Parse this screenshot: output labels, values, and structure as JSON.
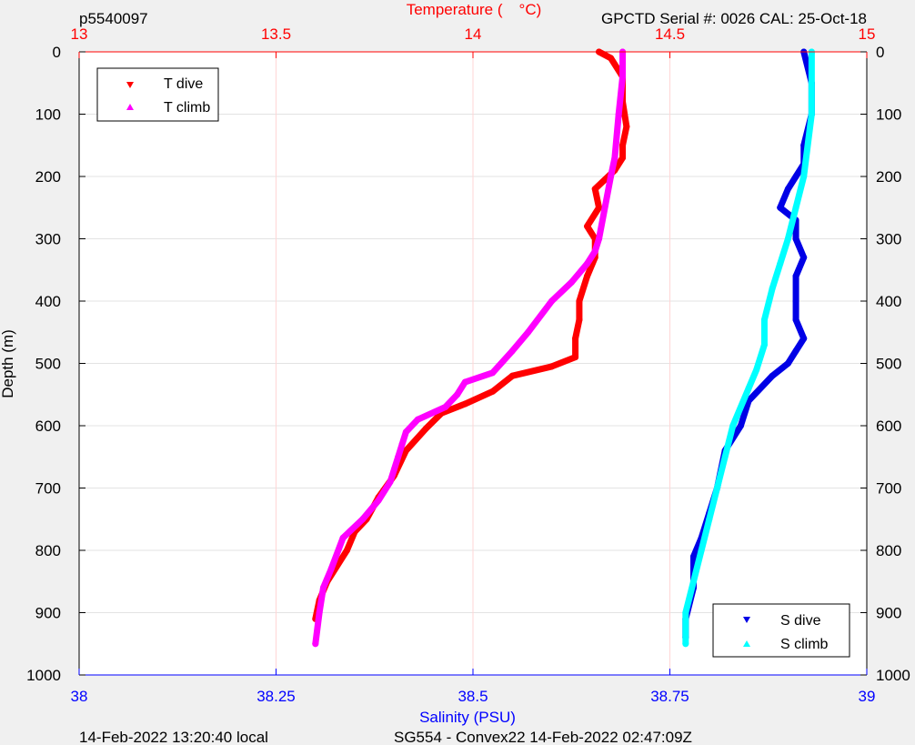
{
  "header": {
    "left_id": "p5540097",
    "right_info": "GPCTD Serial #: 0026 CAL: 25-Oct-18"
  },
  "footer": {
    "left": "14-Feb-2022 13:20:40 local",
    "center": "SG554 - Convex22 14-Feb-2022 02:47:09Z"
  },
  "colors": {
    "t_dive": "#ff0000",
    "t_climb": "#ff00ff",
    "s_dive": "#0000e6",
    "s_climb": "#00ffff",
    "temp_axis": "#ff0000",
    "sal_axis": "#0000ff",
    "depth_axis": "#000000"
  },
  "chart_data": {
    "type": "scatter",
    "y_axis": {
      "label": "Depth (m)",
      "range": [
        0,
        1000
      ],
      "reversed": true,
      "ticks": [
        0,
        100,
        200,
        300,
        400,
        500,
        600,
        700,
        800,
        900,
        1000
      ],
      "tick_labels": [
        "0",
        "100",
        "200",
        "300",
        "400",
        "500",
        "600",
        "700",
        "800",
        "900",
        "1000"
      ],
      "grid": true,
      "mirrored_right": true
    },
    "temperature_axis": {
      "position": "top",
      "label_left": "Temperature (",
      "label_right": "°C)",
      "range": [
        13,
        15
      ],
      "ticks": [
        13,
        13.5,
        14,
        14.5,
        15
      ],
      "tick_labels": [
        "13",
        "13.5",
        "14",
        "14.5",
        "15"
      ],
      "grid": true
    },
    "salinity_axis": {
      "position": "bottom",
      "label": "Salinity (PSU)",
      "range": [
        38,
        39
      ],
      "ticks": [
        38,
        38.25,
        38.5,
        38.75,
        39
      ],
      "tick_labels": [
        "38",
        "38.25",
        "38.5",
        "38.75",
        "39"
      ]
    },
    "legends": [
      {
        "placement": "top-left",
        "entries": [
          {
            "label": "T dive",
            "marker": "triangle-down",
            "color": "#ff0000"
          },
          {
            "label": "T climb",
            "marker": "triangle-up",
            "color": "#ff00ff"
          }
        ]
      },
      {
        "placement": "bottom-right",
        "entries": [
          {
            "label": "S dive",
            "marker": "triangle-down",
            "color": "#0000e6"
          },
          {
            "label": "S climb",
            "marker": "triangle-up",
            "color": "#00ffff"
          }
        ]
      }
    ],
    "series": [
      {
        "name": "T dive",
        "axis": "temperature",
        "color": "#ff0000",
        "x": [
          14.32,
          14.35,
          14.38,
          14.38,
          14.39,
          14.38,
          14.38,
          14.36,
          14.31,
          14.32,
          14.29,
          14.31,
          14.31,
          14.29,
          14.27,
          14.27,
          14.26,
          14.26,
          14.2,
          14.1,
          14.05,
          13.98,
          13.92,
          13.88,
          13.83,
          13.8,
          13.76,
          13.73,
          13.7,
          13.68,
          13.63,
          13.61,
          13.6
        ],
        "y": [
          0,
          10,
          40,
          80,
          120,
          150,
          170,
          190,
          220,
          250,
          280,
          300,
          330,
          360,
          400,
          430,
          460,
          490,
          505,
          520,
          545,
          565,
          580,
          605,
          640,
          680,
          715,
          750,
          770,
          800,
          850,
          880,
          910
        ]
      },
      {
        "name": "T climb",
        "axis": "temperature",
        "color": "#ff00ff",
        "x": [
          13.6,
          13.61,
          13.62,
          13.64,
          13.67,
          13.72,
          13.76,
          13.79,
          13.8,
          13.81,
          13.82,
          13.83,
          13.86,
          13.93,
          13.96,
          13.98,
          14.05,
          14.1,
          14.14,
          14.2,
          14.25,
          14.29,
          14.31,
          14.32,
          14.35,
          14.36,
          14.37,
          14.38,
          14.38
        ],
        "y": [
          950,
          900,
          860,
          830,
          780,
          750,
          720,
          690,
          670,
          650,
          630,
          610,
          590,
          570,
          550,
          530,
          515,
          480,
          450,
          400,
          370,
          340,
          320,
          300,
          200,
          170,
          100,
          40,
          0
        ]
      },
      {
        "name": "S dive",
        "axis": "salinity",
        "color": "#0000e6",
        "x": [
          38.92,
          38.93,
          38.93,
          38.92,
          38.92,
          38.91,
          38.9,
          38.89,
          38.91,
          38.91,
          38.92,
          38.91,
          38.91,
          38.91,
          38.92,
          38.91,
          38.9,
          38.88,
          38.85,
          38.84,
          38.82,
          38.81,
          38.8,
          38.79,
          38.78,
          38.78,
          38.77,
          38.77
        ],
        "y": [
          0,
          50,
          100,
          150,
          180,
          200,
          220,
          250,
          270,
          300,
          330,
          360,
          400,
          430,
          460,
          480,
          500,
          520,
          560,
          600,
          640,
          700,
          740,
          780,
          810,
          860,
          910,
          940
        ]
      },
      {
        "name": "S climb",
        "axis": "salinity",
        "color": "#00ffff",
        "x": [
          38.77,
          38.77,
          38.78,
          38.79,
          38.8,
          38.81,
          38.82,
          38.83,
          38.85,
          38.86,
          38.87,
          38.87,
          38.88,
          38.89,
          38.9,
          38.91,
          38.92,
          38.93,
          38.93
        ],
        "y": [
          950,
          900,
          850,
          800,
          750,
          700,
          650,
          600,
          540,
          510,
          470,
          430,
          380,
          340,
          300,
          250,
          200,
          100,
          0
        ]
      }
    ]
  }
}
